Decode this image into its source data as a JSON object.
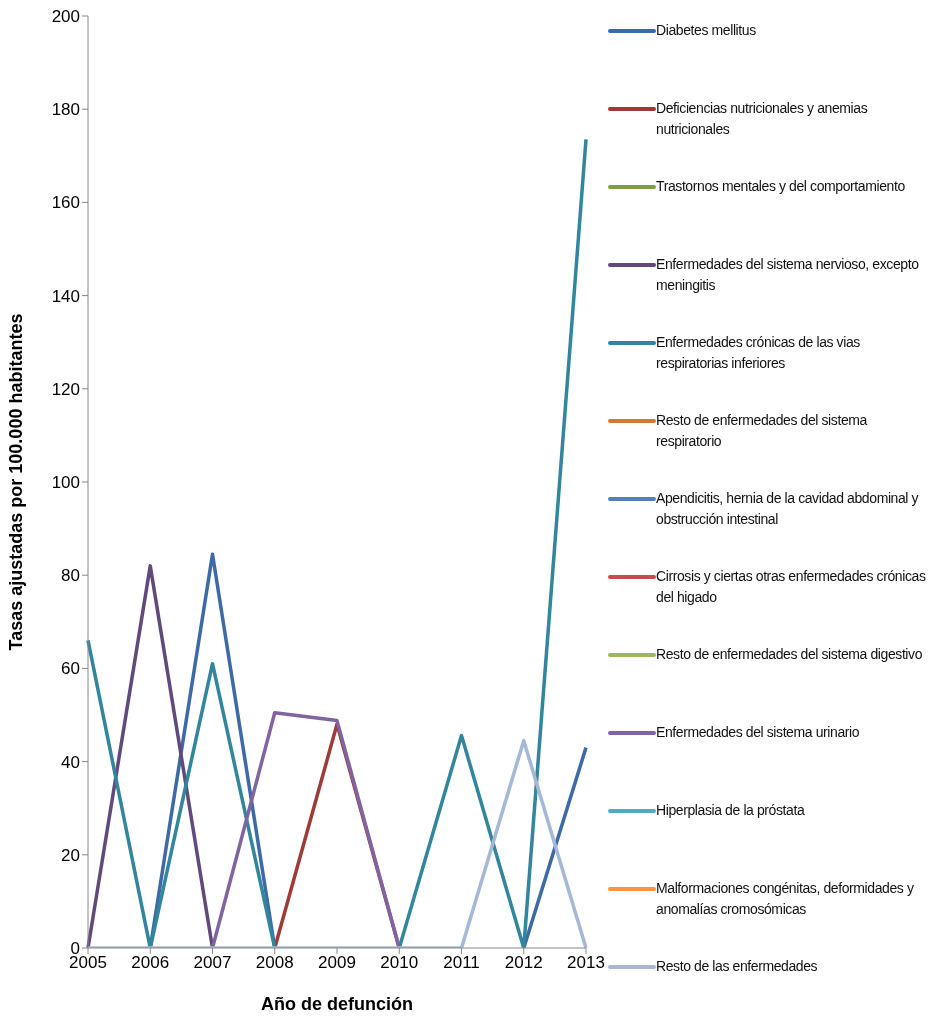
{
  "chart_data": {
    "type": "line",
    "xlabel": "Año de defunción",
    "ylabel": "Tasas ajustadas por 100.000 habitantes",
    "categories": [
      "2005",
      "2006",
      "2007",
      "2008",
      "2009",
      "2010",
      "2011",
      "2012",
      "2013"
    ],
    "ylim": [
      0,
      200
    ],
    "yticks": [
      0,
      20,
      40,
      60,
      80,
      100,
      120,
      140,
      160,
      180,
      200
    ],
    "grid": false,
    "legend": "right",
    "marker": "none",
    "line_style": "solid",
    "series": [
      {
        "name": "Diabetes mellitus",
        "color": "#3c6aa6",
        "values": [
          null,
          0,
          84.5,
          0,
          null,
          null,
          null,
          0,
          43
        ]
      },
      {
        "name": "Deficiencias nutricionales y anemias nutricionales",
        "color": "#9e3b36",
        "values": [
          null,
          null,
          null,
          0,
          48,
          0,
          null,
          null,
          null
        ]
      },
      {
        "name": "Trastornos mentales y del comportamiento",
        "color": "#7f9d3f",
        "values": [
          null,
          null,
          null,
          null,
          null,
          null,
          null,
          null,
          null
        ]
      },
      {
        "name": "Enfermedades del sistema nervioso, excepto meningitis",
        "color": "#604a7b",
        "values": [
          0,
          82,
          0,
          null,
          null,
          null,
          null,
          null,
          null
        ]
      },
      {
        "name": "Enfermedades crónicas de las vias respiratorias inferiores",
        "color": "#31859c",
        "values": [
          66,
          0,
          61,
          0,
          null,
          0,
          45.6,
          0,
          173.5
        ]
      },
      {
        "name": "Resto de enfermedades del sistema respiratorio",
        "color": "#d07b35",
        "values": [
          null,
          null,
          null,
          null,
          null,
          null,
          null,
          null,
          null
        ]
      },
      {
        "name": "Apendicitis, hernia de la cavidad abdominal y obstrucción intestinal",
        "color": "#4f81bd",
        "values": [
          null,
          null,
          null,
          null,
          null,
          null,
          null,
          null,
          null
        ]
      },
      {
        "name": "Cirrosis y ciertas otras enfermedades crónicas del higado",
        "color": "#c0504d",
        "values": [
          null,
          null,
          null,
          null,
          null,
          null,
          null,
          null,
          null
        ]
      },
      {
        "name": "Resto de enfermedades del sistema digestivo",
        "color": "#9bbb59",
        "values": [
          null,
          null,
          null,
          null,
          null,
          null,
          null,
          null,
          null
        ]
      },
      {
        "name": "Enfermedades del sistema urinario",
        "color": "#8064a2",
        "values": [
          null,
          null,
          0,
          50.5,
          48.8,
          0,
          null,
          null,
          null
        ]
      },
      {
        "name": "Hiperplasia de la próstata",
        "color": "#4bacc6",
        "values": [
          null,
          null,
          null,
          null,
          null,
          null,
          null,
          null,
          null
        ]
      },
      {
        "name": "Malformaciones congénitas, deformidades y anomalías cromosómicas",
        "color": "#f79646",
        "values": [
          null,
          null,
          null,
          null,
          null,
          null,
          null,
          null,
          null
        ]
      },
      {
        "name": "Resto de las enfermedades",
        "color": "#a5b8d8",
        "values": [
          0,
          0,
          0,
          0,
          0,
          0,
          0,
          44.5,
          0
        ]
      }
    ]
  }
}
